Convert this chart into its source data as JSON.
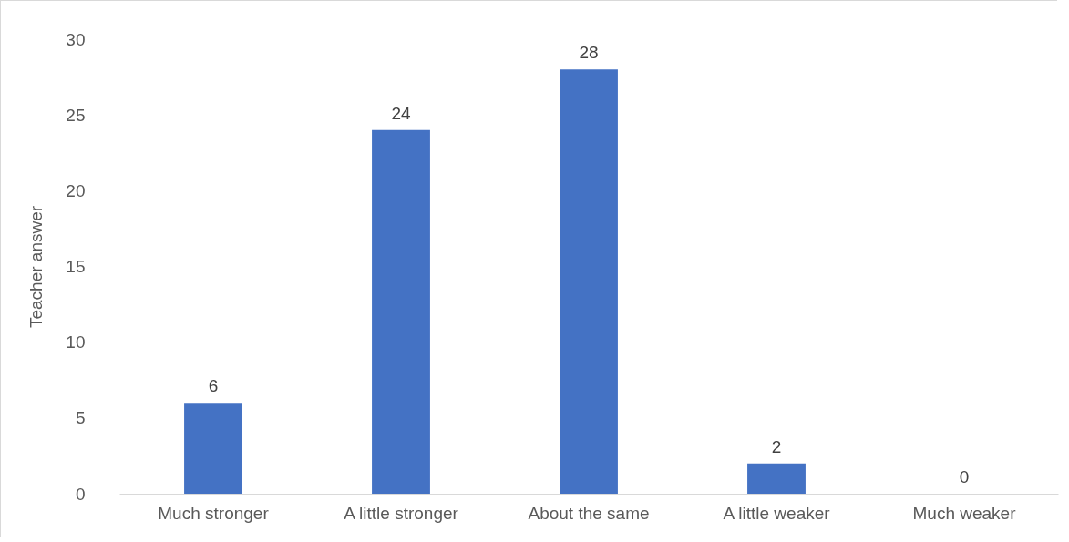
{
  "chart_data": {
    "type": "bar",
    "ylabel": "Teacher answer",
    "categories": [
      "Much stronger",
      "A little stronger",
      "About the same",
      "A little weaker",
      "Much weaker"
    ],
    "values": [
      6,
      24,
      28,
      2,
      0
    ],
    "color": "#4472c4",
    "ylim": [
      0,
      30
    ],
    "yticks": [
      0,
      5,
      10,
      15,
      20,
      25,
      30
    ],
    "grid": false,
    "data_labels": true
  }
}
